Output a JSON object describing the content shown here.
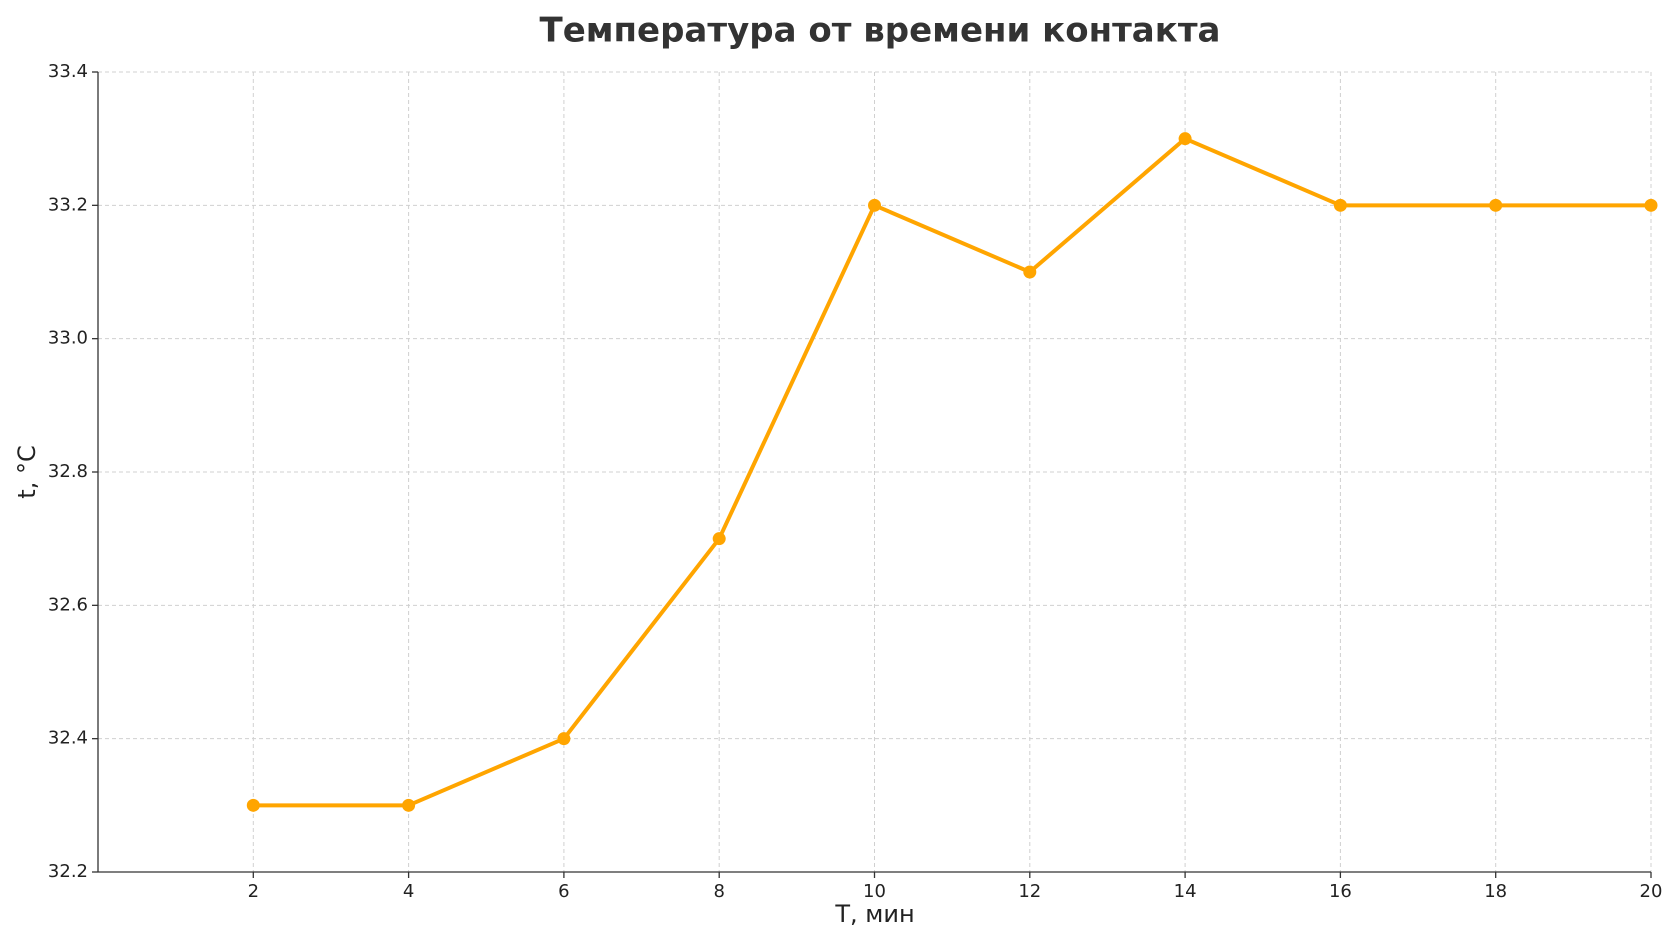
{
  "chart_data": {
    "type": "line",
    "title": "Температура от времени контакта",
    "xlabel": "T, мин",
    "ylabel": "t, °C",
    "x": [
      2,
      4,
      6,
      8,
      10,
      12,
      14,
      16,
      18,
      20
    ],
    "series": [
      {
        "name": "t",
        "color": "#ffa500",
        "values": [
          32.3,
          32.3,
          32.4,
          32.7,
          33.2,
          33.1,
          33.3,
          33.2,
          33.2,
          33.2
        ]
      }
    ],
    "xlim": [
      0,
      20
    ],
    "xticks": [
      2,
      4,
      6,
      8,
      10,
      12,
      14,
      16,
      18,
      20
    ],
    "ylim": [
      32.2,
      33.4
    ],
    "yticks": [
      32.2,
      32.4,
      32.6,
      32.8,
      {
        "value": 33,
        "label": "33.0"
      },
      33.2,
      33.4
    ],
    "grid": true
  }
}
